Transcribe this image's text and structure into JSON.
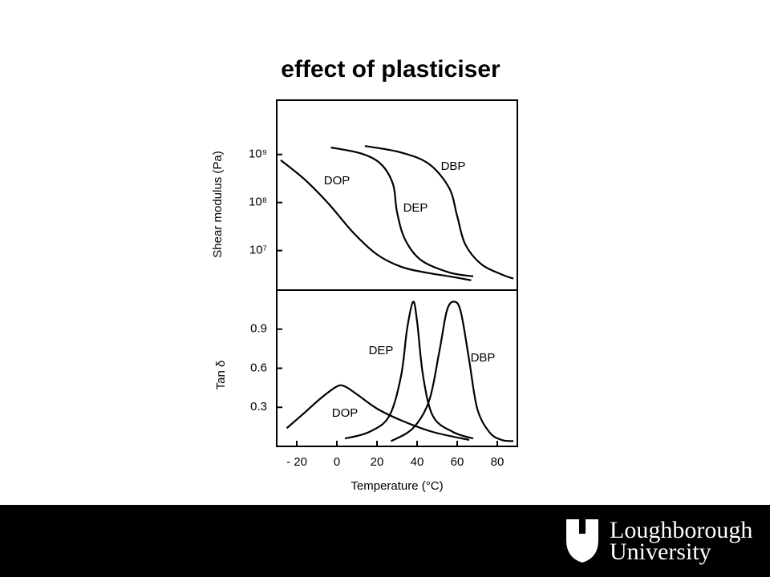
{
  "slide_title": "effect of plasticiser",
  "footer": {
    "logo_line1": "Loughborough",
    "logo_line2": "University"
  },
  "chart_data": [
    {
      "type": "line",
      "ylabel": "Shear modulus (Pa)",
      "log_y": true,
      "xlim": [
        -30,
        90
      ],
      "ylim": [
        1500000,
        13500000000
      ],
      "yticks": [
        {
          "value": 10000000,
          "label": "10⁷"
        },
        {
          "value": 100000000,
          "label": "10⁸"
        },
        {
          "value": 1000000000,
          "label": "10⁹"
        }
      ],
      "series": [
        {
          "name": "DOP",
          "color": "#000000",
          "x": [
            -28,
            -16,
            -4,
            8,
            20,
            32,
            44,
            56,
            67
          ],
          "values": [
            760000000,
            300000000,
            93000000,
            24000000,
            8300000,
            4600000,
            3500000,
            2900000,
            2400000
          ]
        },
        {
          "name": "DEP",
          "color": "#000000",
          "x": [
            -3,
            12,
            22,
            28,
            30,
            34,
            42,
            56,
            68
          ],
          "values": [
            1400000000,
            1050000000,
            630000000,
            240000000,
            63000000,
            17000000,
            6300000,
            3500000,
            2900000
          ]
        },
        {
          "name": "DBP",
          "color": "#000000",
          "x": [
            14,
            32,
            46,
            56,
            60,
            64,
            72,
            82,
            88
          ],
          "values": [
            1500000000,
            1100000000,
            630000000,
            200000000,
            52000000,
            13500000,
            5200000,
            3200000,
            2600000
          ]
        }
      ]
    },
    {
      "type": "line",
      "ylabel": "Tan δ",
      "xlabel": "Temperature  (°C)",
      "xlim": [
        -30,
        90
      ],
      "ylim": [
        0,
        1.2
      ],
      "xticks": [
        {
          "value": -20,
          "label": "- 20"
        },
        0,
        20,
        40,
        60,
        80
      ],
      "yticks": [
        0.3,
        0.6,
        0.9
      ],
      "series": [
        {
          "name": "DOP",
          "color": "#000000",
          "x": [
            -25,
            -16,
            -8,
            0,
            4,
            10,
            20,
            32,
            48,
            66
          ],
          "values": [
            0.14,
            0.26,
            0.37,
            0.46,
            0.46,
            0.4,
            0.29,
            0.2,
            0.11,
            0.05
          ]
        },
        {
          "name": "DEP",
          "color": "#000000",
          "x": [
            4,
            16,
            26,
            32,
            35,
            38,
            40,
            43,
            48,
            58,
            68
          ],
          "values": [
            0.06,
            0.11,
            0.23,
            0.54,
            0.9,
            1.11,
            0.96,
            0.54,
            0.23,
            0.11,
            0.06
          ]
        },
        {
          "name": "DBP",
          "color": "#000000",
          "x": [
            27,
            38,
            46,
            51,
            55,
            59,
            62,
            66,
            70,
            76,
            82,
            88
          ],
          "values": [
            0.04,
            0.14,
            0.35,
            0.72,
            1.05,
            1.11,
            1.02,
            0.66,
            0.29,
            0.11,
            0.05,
            0.04
          ]
        }
      ]
    }
  ]
}
